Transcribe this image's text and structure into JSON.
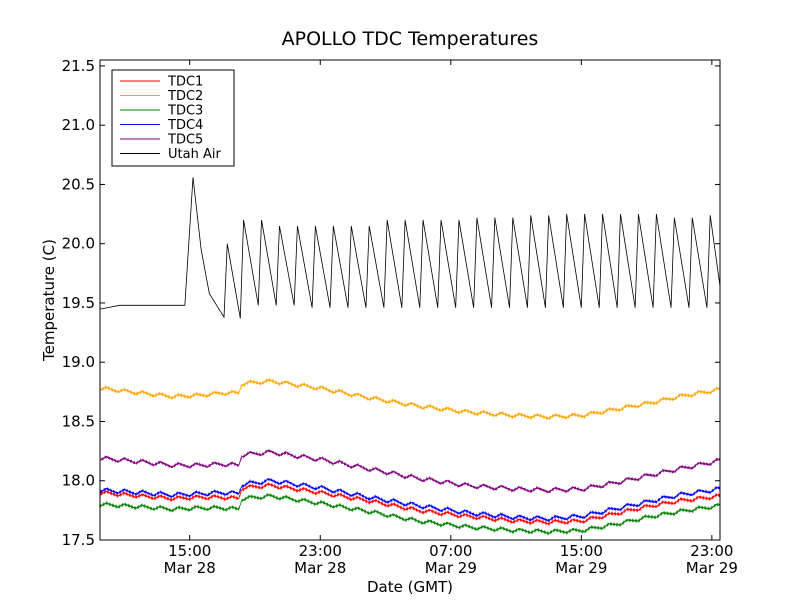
{
  "chart_data": {
    "type": "line",
    "title": "APOLLO TDC Temperatures",
    "xlabel": "Date (GMT)",
    "ylabel": "Temperature (C)",
    "x_unit": "hours since Mar 28 00:00 GMT",
    "xlim": [
      9.5,
      47.5
    ],
    "ylim": [
      17.5,
      21.55
    ],
    "y_ticks": [
      17.5,
      18.0,
      18.5,
      19.0,
      19.5,
      20.0,
      20.5,
      21.0,
      21.5
    ],
    "y_tick_labels": [
      "17.5",
      "18.0",
      "18.5",
      "19.0",
      "19.5",
      "20.0",
      "20.5",
      "21.0",
      "21.5"
    ],
    "x_ticks": [
      {
        "x": 15,
        "time": "15:00",
        "date": "Mar 28"
      },
      {
        "x": 23,
        "time": "23:00",
        "date": "Mar 28"
      },
      {
        "x": 31,
        "time": "07:00",
        "date": "Mar 29"
      },
      {
        "x": 39,
        "time": "15:00",
        "date": "Mar 29"
      },
      {
        "x": 47,
        "time": "23:00",
        "date": "Mar 29"
      }
    ],
    "grid": false,
    "legend_position": "top-left",
    "series": [
      {
        "name": "TDC1",
        "color": "#ff0000",
        "x": [
          9.5,
          12,
          14,
          15.5,
          17,
          18,
          18.2,
          20,
          23,
          26,
          29,
          32,
          35,
          37,
          39,
          41,
          43,
          45,
          47.5
        ],
        "values": [
          17.9,
          17.87,
          17.85,
          17.86,
          17.86,
          17.85,
          17.94,
          17.96,
          17.9,
          17.83,
          17.75,
          17.7,
          17.66,
          17.65,
          17.66,
          17.72,
          17.78,
          17.83,
          17.87
        ],
        "ripple": 0.03
      },
      {
        "name": "TDC2",
        "color": "#ffa500",
        "x": [
          9.5,
          12,
          14,
          15.5,
          17,
          18,
          18.2,
          20,
          23,
          26,
          29,
          32,
          35,
          37,
          39,
          41,
          43,
          45,
          47.5
        ],
        "values": [
          18.78,
          18.74,
          18.71,
          18.72,
          18.74,
          18.74,
          18.82,
          18.84,
          18.78,
          18.7,
          18.63,
          18.58,
          18.55,
          18.54,
          18.55,
          18.6,
          18.65,
          18.71,
          18.77
        ],
        "ripple": 0.03
      },
      {
        "name": "TDC3",
        "color": "#008000",
        "x": [
          9.5,
          12,
          14,
          15.5,
          17,
          18,
          18.2,
          20,
          23,
          26,
          29,
          32,
          35,
          37,
          39,
          41,
          43,
          45,
          47.5
        ],
        "values": [
          17.8,
          17.78,
          17.76,
          17.77,
          17.77,
          17.76,
          17.85,
          17.87,
          17.81,
          17.74,
          17.66,
          17.61,
          17.58,
          17.57,
          17.58,
          17.63,
          17.69,
          17.74,
          17.79
        ],
        "ripple": 0.03
      },
      {
        "name": "TDC4",
        "color": "#0000ff",
        "x": [
          9.5,
          12,
          14,
          15.5,
          17,
          18,
          18.2,
          20,
          23,
          26,
          29,
          32,
          35,
          37,
          39,
          41,
          43,
          45,
          47.5
        ],
        "values": [
          17.92,
          17.9,
          17.88,
          17.89,
          17.9,
          17.89,
          17.97,
          18.0,
          17.94,
          17.86,
          17.79,
          17.73,
          17.69,
          17.68,
          17.7,
          17.76,
          17.82,
          17.88,
          17.93
        ],
        "ripple": 0.035
      },
      {
        "name": "TDC5",
        "color": "#800080",
        "x": [
          9.5,
          12,
          14,
          15.5,
          17,
          18,
          18.2,
          20,
          23,
          26,
          29,
          32,
          35,
          37,
          39,
          41,
          43,
          45,
          47.5
        ],
        "values": [
          18.19,
          18.16,
          18.13,
          18.13,
          18.14,
          18.13,
          18.22,
          18.24,
          18.18,
          18.1,
          18.02,
          17.96,
          17.93,
          17.92,
          17.93,
          17.98,
          18.04,
          18.1,
          18.17
        ],
        "ripple": 0.035
      },
      {
        "name": "Utah Air",
        "color": "#000000",
        "x": [
          9.5,
          9.6,
          10.7,
          11.7,
          12.7,
          13.7,
          14.7,
          15.2,
          15.7,
          16.2,
          17.1,
          17.3,
          18.1,
          18.3,
          19.2,
          19.4,
          20.3,
          20.5,
          21.4,
          21.6,
          22.5,
          22.7,
          23.6,
          23.8,
          24.7,
          24.9,
          25.8,
          26.0,
          26.9,
          27.1,
          28.0,
          28.2,
          29.1,
          29.3,
          30.2,
          30.4,
          31.3,
          31.5,
          32.4,
          32.6,
          33.5,
          33.7,
          34.6,
          34.8,
          35.7,
          35.9,
          36.8,
          37.0,
          37.9,
          38.1,
          39.0,
          39.2,
          40.1,
          40.3,
          41.2,
          41.4,
          42.3,
          42.5,
          43.4,
          43.6,
          44.5,
          44.7,
          45.6,
          45.8,
          46.7,
          46.9,
          47.5
        ],
        "values": [
          19.45,
          19.45,
          19.48,
          19.48,
          19.48,
          19.48,
          19.48,
          20.56,
          19.95,
          19.58,
          19.38,
          20.0,
          19.37,
          20.2,
          19.48,
          20.2,
          19.48,
          20.15,
          19.48,
          20.15,
          19.46,
          20.15,
          19.46,
          20.15,
          19.46,
          20.15,
          19.46,
          20.15,
          19.46,
          20.2,
          19.46,
          20.2,
          19.46,
          20.2,
          19.46,
          20.2,
          19.46,
          20.2,
          19.46,
          20.22,
          19.46,
          20.22,
          19.46,
          20.22,
          19.46,
          20.24,
          19.46,
          20.24,
          19.46,
          20.25,
          19.46,
          20.25,
          19.46,
          20.25,
          19.46,
          20.25,
          19.46,
          20.25,
          19.46,
          20.25,
          19.46,
          20.22,
          19.46,
          20.22,
          19.46,
          20.24,
          19.64
        ],
        "ripple": 0
      }
    ]
  }
}
